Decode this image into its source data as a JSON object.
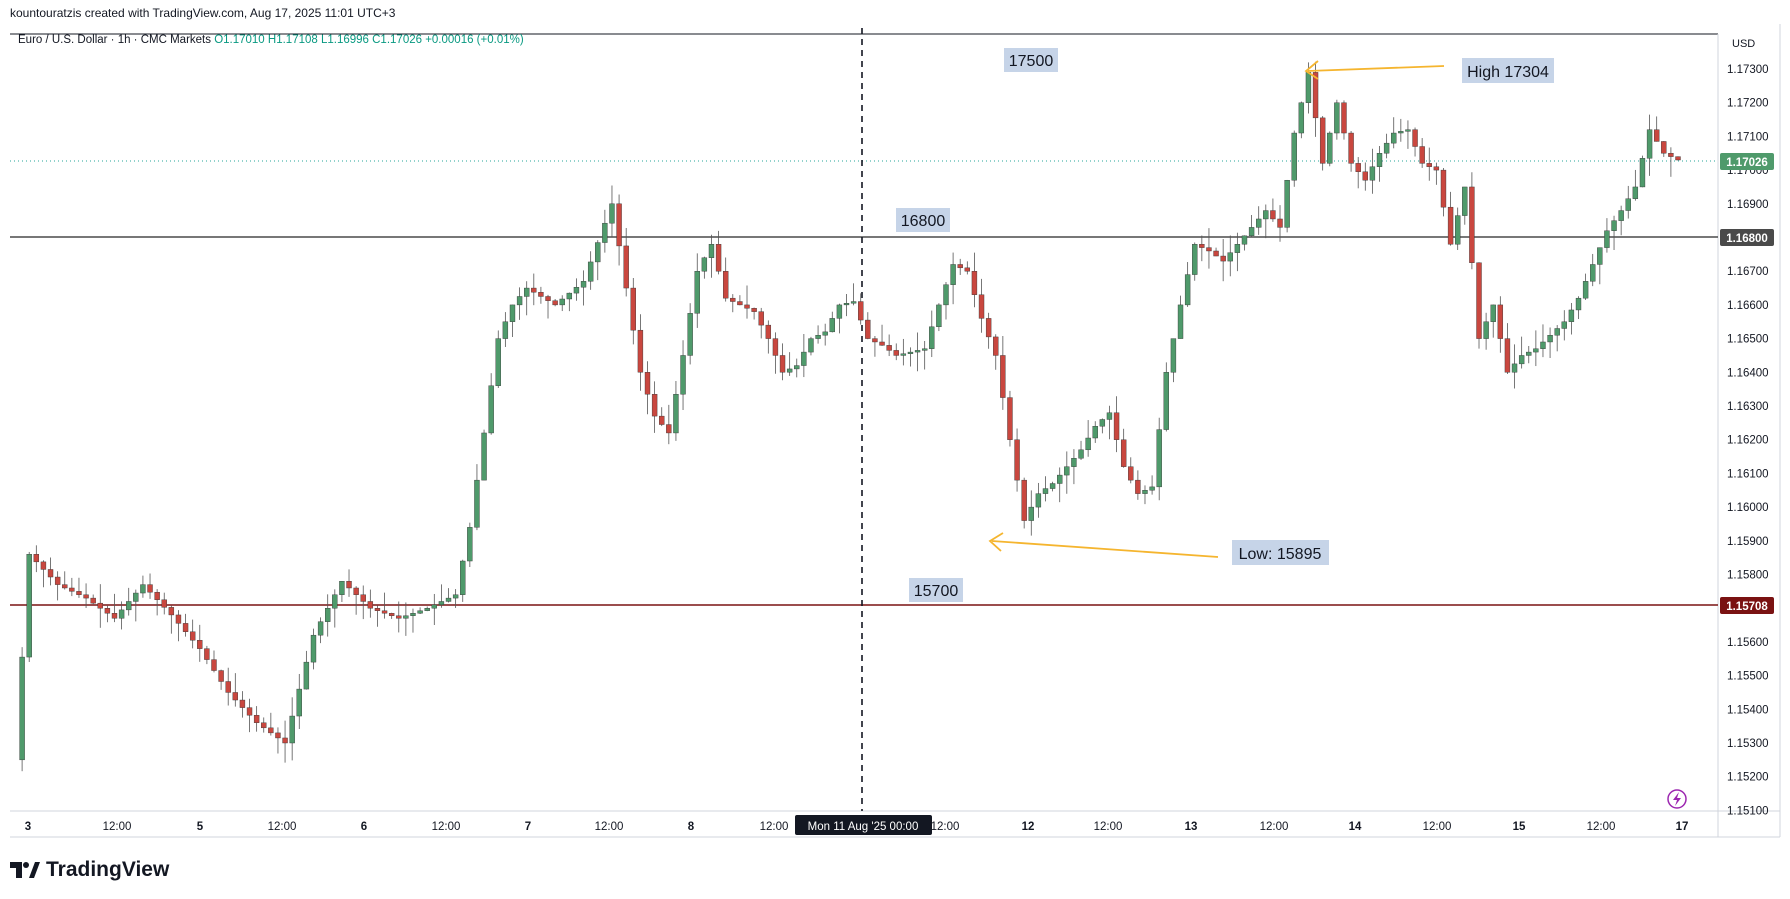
{
  "header": {
    "credit": "kountouratzis created with TradingView.com, Aug 17, 2025 11:01 UTC+3"
  },
  "symbol": {
    "name": "Euro / U.S. Dollar · 1h · CMC Markets",
    "ohlc": "O1.17010  H1.17108  L1.16996  C1.17026  +0.00016 (+0.01%)"
  },
  "axis": {
    "currency": "USD",
    "price_ticks": [
      "1.17300",
      "1.17200",
      "1.17100",
      "1.17000",
      "1.16900",
      "1.16800",
      "1.16700",
      "1.16600",
      "1.16500",
      "1.16400",
      "1.16300",
      "1.16200",
      "1.16100",
      "1.16000",
      "1.15900",
      "1.15800",
      "1.15700",
      "1.15600",
      "1.15500",
      "1.15400",
      "1.15300",
      "1.15200",
      "1.15100"
    ],
    "time_labels": [
      "3",
      "12:00",
      "5",
      "12:00",
      "6",
      "12:00",
      "7",
      "12:00",
      "8",
      "12:00",
      "12:00",
      "12",
      "12:00",
      "13",
      "12:00",
      "14",
      "12:00",
      "15",
      "12:00",
      "17"
    ],
    "crosshair_label": "Mon 11 Aug '25   00:00"
  },
  "price_badges": {
    "last": "1.17026",
    "level_168": "1.16800",
    "level_157": "1.15708"
  },
  "annotations": {
    "label_17500": "17500",
    "label_16800": "16800",
    "label_15700": "15700",
    "high": "High 17304",
    "low": "Low: 15895"
  },
  "brand": {
    "logo_text": "TradingView"
  },
  "colors": {
    "up": "#26a69a",
    "up_fill": "#4f9a6b",
    "down": "#ef5350",
    "down_fill": "#c9473f",
    "arrow": "#f5b52f",
    "level_dark": "#4a4a4a",
    "level_red": "#7a1212",
    "label_bg": "#c6d4e8"
  },
  "chart_data": {
    "type": "candlestick",
    "instrument": "EUR/USD",
    "timeframe": "1h",
    "y_range": [
      1.1507,
      1.1738
    ],
    "x_range_labels": [
      "3",
      "17"
    ],
    "horizontal_levels": [
      1.168,
      1.15708
    ],
    "last_price": 1.17026,
    "swing_high": 1.17304,
    "swing_low": 1.15895,
    "approx_path": [
      [
        0,
        1.1525
      ],
      [
        2,
        1.1586
      ],
      [
        6,
        1.1577
      ],
      [
        10,
        1.1573
      ],
      [
        14,
        1.1567
      ],
      [
        18,
        1.1577
      ],
      [
        22,
        1.1568
      ],
      [
        26,
        1.1558
      ],
      [
        30,
        1.1545
      ],
      [
        34,
        1.1536
      ],
      [
        38,
        1.153
      ],
      [
        42,
        1.1562
      ],
      [
        46,
        1.1578
      ],
      [
        50,
        1.157
      ],
      [
        54,
        1.1567
      ],
      [
        58,
        1.157
      ],
      [
        62,
        1.1574
      ],
      [
        64,
        1.1594
      ],
      [
        66,
        1.1622
      ],
      [
        68,
        1.165
      ],
      [
        70,
        1.166
      ],
      [
        72,
        1.1665
      ],
      [
        76,
        1.166
      ],
      [
        80,
        1.1667
      ],
      [
        84,
        1.169
      ],
      [
        86,
        1.1665
      ],
      [
        88,
        1.164
      ],
      [
        90,
        1.1627
      ],
      [
        92,
        1.1622
      ],
      [
        94,
        1.1645
      ],
      [
        96,
        1.167
      ],
      [
        98,
        1.1678
      ],
      [
        100,
        1.1662
      ],
      [
        104,
        1.1658
      ],
      [
        106,
        1.165
      ],
      [
        108,
        1.164
      ],
      [
        110,
        1.1642
      ],
      [
        112,
        1.165
      ],
      [
        114,
        1.1652
      ],
      [
        116,
        1.166
      ],
      [
        118,
        1.1661
      ],
      [
        120,
        1.165
      ],
      [
        122,
        1.1648
      ],
      [
        124,
        1.1645
      ],
      [
        126,
        1.1646
      ],
      [
        128,
        1.1647
      ],
      [
        130,
        1.166
      ],
      [
        132,
        1.1672
      ],
      [
        134,
        1.167
      ],
      [
        136,
        1.1656
      ],
      [
        138,
        1.1645
      ],
      [
        140,
        1.162
      ],
      [
        142,
        1.1596
      ],
      [
        144,
        1.1604
      ],
      [
        146,
        1.1607
      ],
      [
        148,
        1.1612
      ],
      [
        150,
        1.1617
      ],
      [
        152,
        1.1624
      ],
      [
        154,
        1.1628
      ],
      [
        156,
        1.1612
      ],
      [
        158,
        1.1604
      ],
      [
        160,
        1.1606
      ],
      [
        162,
        1.164
      ],
      [
        164,
        1.166
      ],
      [
        166,
        1.1678
      ],
      [
        168,
        1.1676
      ],
      [
        170,
        1.1673
      ],
      [
        172,
        1.1678
      ],
      [
        174,
        1.1683
      ],
      [
        176,
        1.1688
      ],
      [
        178,
        1.1683
      ],
      [
        180,
        1.1711
      ],
      [
        182,
        1.1729
      ],
      [
        184,
        1.1702
      ],
      [
        186,
        1.172
      ],
      [
        188,
        1.1702
      ],
      [
        190,
        1.1697
      ],
      [
        192,
        1.1705
      ],
      [
        194,
        1.1711
      ],
      [
        196,
        1.1712
      ],
      [
        198,
        1.1702
      ],
      [
        200,
        1.17
      ],
      [
        202,
        1.1678
      ],
      [
        204,
        1.1695
      ],
      [
        206,
        1.165
      ],
      [
        208,
        1.166
      ],
      [
        210,
        1.164
      ],
      [
        212,
        1.1645
      ],
      [
        214,
        1.1647
      ],
      [
        216,
        1.1651
      ],
      [
        218,
        1.1655
      ],
      [
        220,
        1.1662
      ],
      [
        222,
        1.1672
      ],
      [
        224,
        1.1682
      ],
      [
        226,
        1.1688
      ],
      [
        228,
        1.1695
      ],
      [
        230,
        1.1712
      ],
      [
        232,
        1.1705
      ],
      [
        234,
        1.1703
      ]
    ]
  }
}
